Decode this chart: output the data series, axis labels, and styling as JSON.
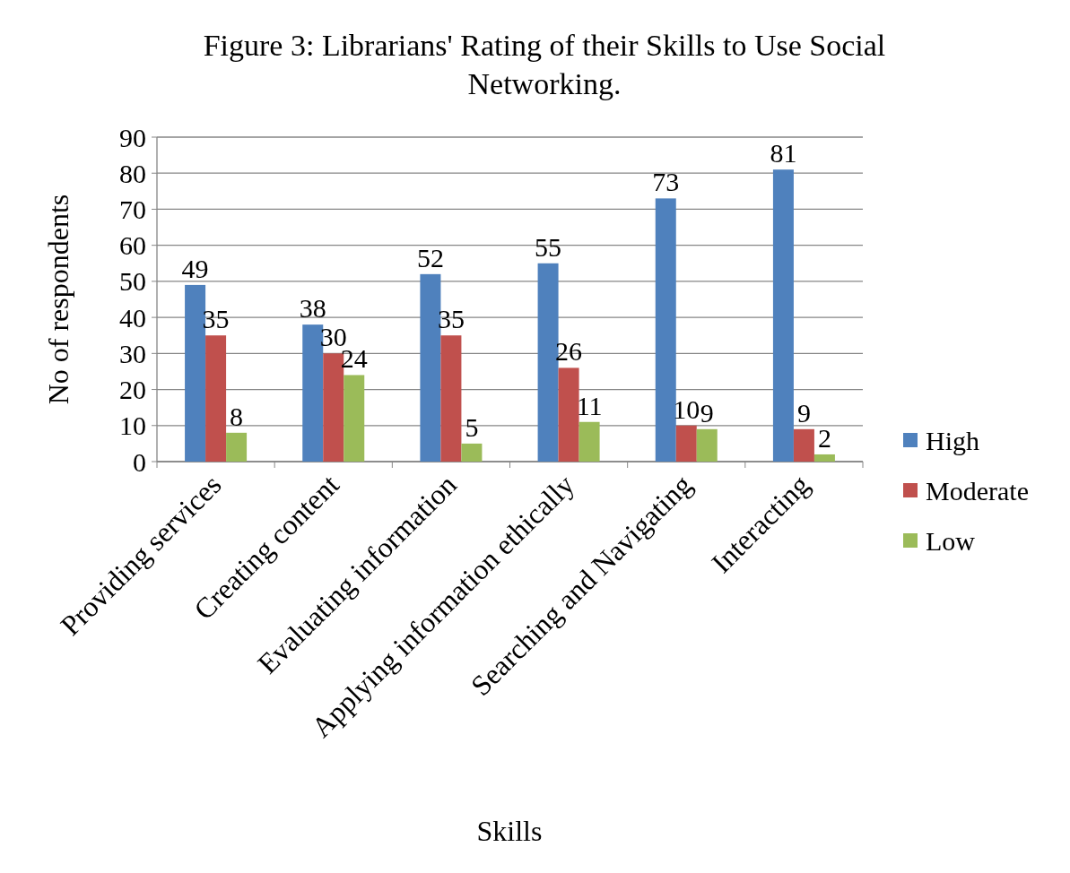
{
  "chart_data": {
    "type": "bar",
    "title": "Figure 3: Librarians' Rating of their Skills to Use Social Networking.",
    "xlabel": "Skills",
    "ylabel": "No of respondents",
    "categories": [
      "Providing services",
      "Creating content",
      "Evaluating information",
      "Applying information ethically",
      "Searching and Navigating",
      "Interacting"
    ],
    "series": [
      {
        "name": "High",
        "color": "#4f81bd",
        "values": [
          49,
          38,
          52,
          55,
          73,
          81
        ]
      },
      {
        "name": "Moderate",
        "color": "#c0504d",
        "values": [
          35,
          30,
          35,
          26,
          10,
          9
        ]
      },
      {
        "name": "Low",
        "color": "#9bbb59",
        "values": [
          8,
          24,
          5,
          11,
          9,
          2
        ]
      }
    ],
    "ylim": [
      0,
      90
    ],
    "yticks": [
      0,
      10,
      20,
      30,
      40,
      50,
      60,
      70,
      80,
      90
    ],
    "grid": "y",
    "legend": "right",
    "data_labels": true
  }
}
